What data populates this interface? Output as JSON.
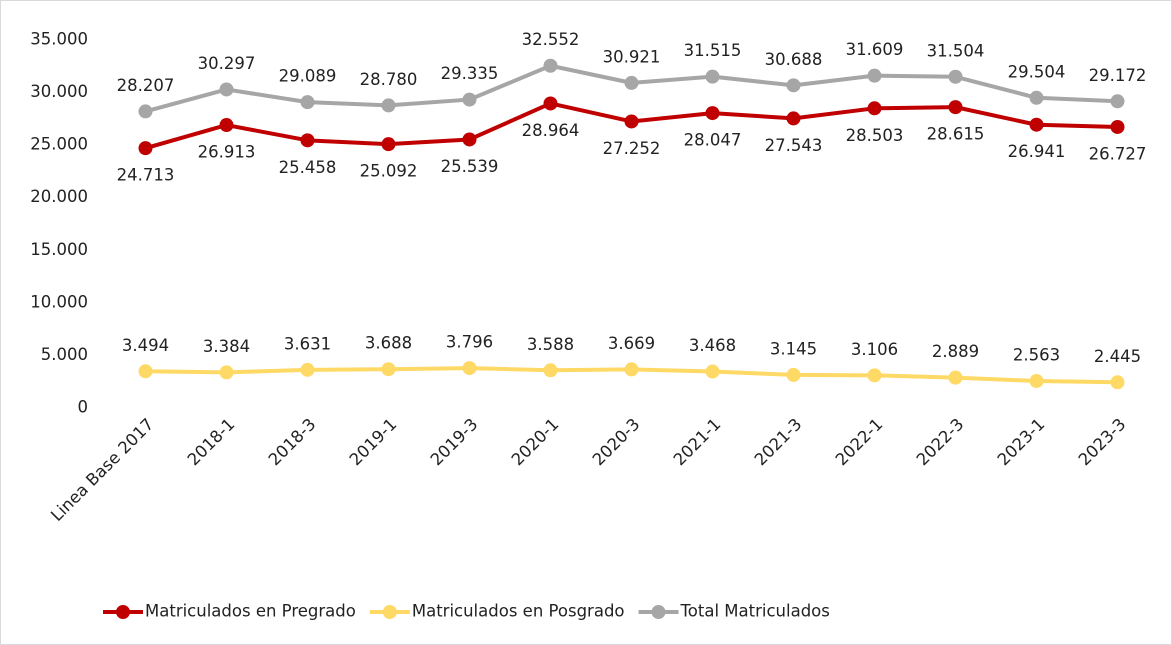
{
  "chart_data": {
    "type": "line",
    "categories": [
      "Linea Base 2017",
      "2018-1",
      "2018-3",
      "2019-1",
      "2019-3",
      "2020-1",
      "2020-3",
      "2021-1",
      "2021-3",
      "2022-1",
      "2022-3",
      "2023-1",
      "2023-3"
    ],
    "series": [
      {
        "name": "Matriculados en Pregrado",
        "color": "#c00000",
        "label_position": "below",
        "values": [
          24713,
          26913,
          25458,
          25092,
          25539,
          28964,
          27252,
          28047,
          27543,
          28503,
          28615,
          26941,
          26727
        ],
        "value_labels": [
          "24.713",
          "26.913",
          "25.458",
          "25.092",
          "25.539",
          "28.964",
          "27.252",
          "28.047",
          "27.543",
          "28.503",
          "28.615",
          "26.941",
          "26.727"
        ]
      },
      {
        "name": "Matriculados en Posgrado",
        "color": "#ffd966",
        "label_position": "above",
        "values": [
          3494,
          3384,
          3631,
          3688,
          3796,
          3588,
          3669,
          3468,
          3145,
          3106,
          2889,
          2563,
          2445
        ],
        "value_labels": [
          "3.494",
          "3.384",
          "3.631",
          "3.688",
          "3.796",
          "3.588",
          "3.669",
          "3.468",
          "3.145",
          "3.106",
          "2.889",
          "2.563",
          "2.445"
        ]
      },
      {
        "name": "Total Matriculados",
        "color": "#a6a6a6",
        "label_position": "above",
        "values": [
          28207,
          30297,
          29089,
          28780,
          29335,
          32552,
          30921,
          31515,
          30688,
          31609,
          31504,
          29504,
          29172
        ],
        "value_labels": [
          "28.207",
          "30.297",
          "29.089",
          "28.780",
          "29.335",
          "32.552",
          "30.921",
          "31.515",
          "30.688",
          "31.609",
          "31.504",
          "29.504",
          "29.172"
        ]
      }
    ],
    "ylim": [
      0,
      35000
    ],
    "yticks": [
      0,
      {
        "value": 5000,
        "label": "5.000"
      },
      {
        "value": 10000,
        "label": "10.000"
      },
      {
        "value": 15000,
        "label": "15.000"
      },
      {
        "value": 20000,
        "label": "20.000"
      },
      {
        "value": 25000,
        "label": "25.000"
      },
      {
        "value": 30000,
        "label": "30.000"
      },
      {
        "value": 35000,
        "label": "35.000"
      }
    ],
    "grid": false,
    "legend": "bottom"
  }
}
